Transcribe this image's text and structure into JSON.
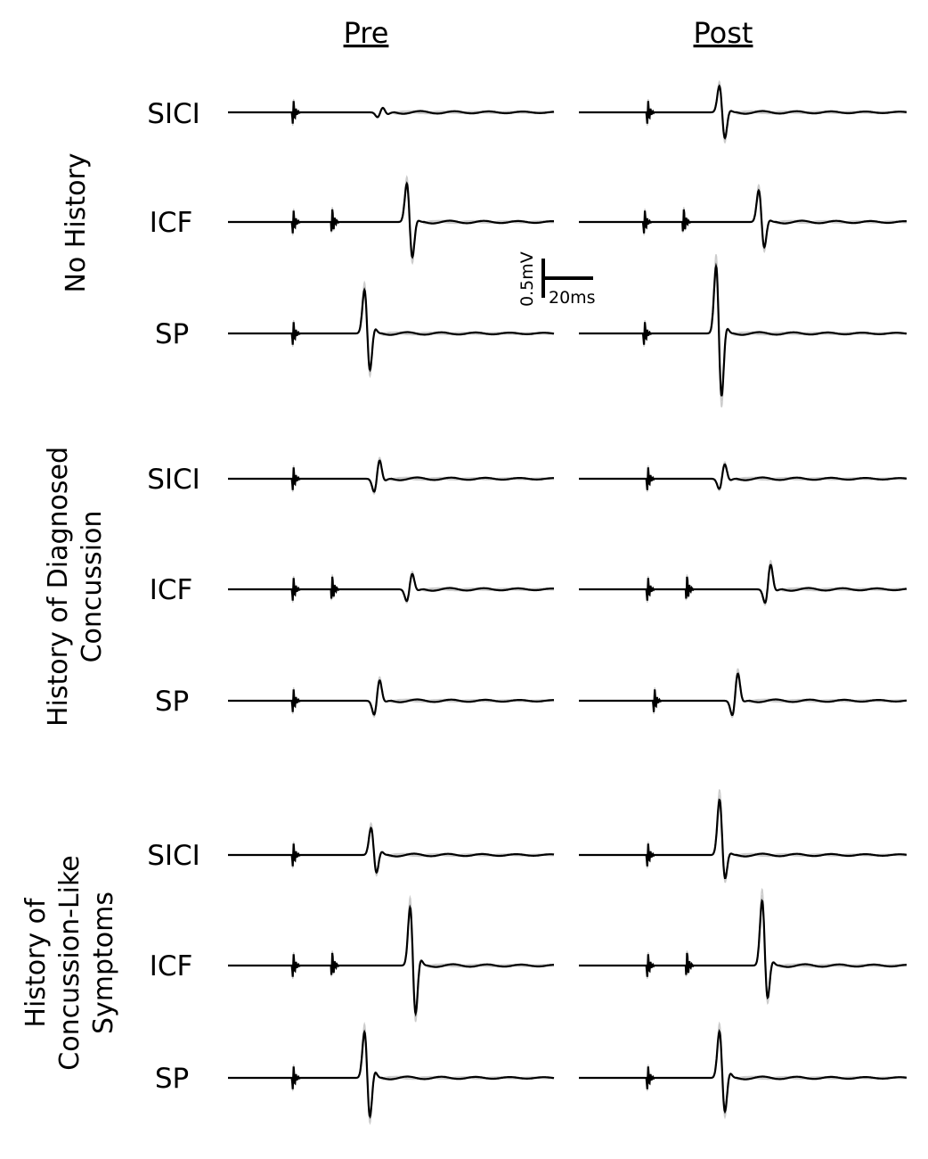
{
  "chart_data": {
    "type": "line",
    "columns": [
      "Pre",
      "Post"
    ],
    "scale_bar": {
      "amplitude_label": "0.5mV",
      "time_label": "20ms"
    },
    "groups": [
      {
        "label_lines": [
          "No History"
        ],
        "traces": [
          {
            "label": "SICI",
            "pre": {
              "pulses": [
                0.2
              ],
              "mep": {
                "t": 0.46,
                "peaks": [
                  -0.1,
                  0.1,
                  -0.04
                ]
              }
            },
            "post": {
              "pulses": [
                0.21
              ],
              "mep": {
                "t": 0.43,
                "peaks": [
                  0.55,
                  -0.55,
                  0.05
                ]
              }
            }
          },
          {
            "label": "ICF",
            "pre": {
              "pulses": [
                0.2,
                0.32
              ],
              "mep": {
                "t": 0.55,
                "peaks": [
                  0.8,
                  -0.75,
                  0.05
                ]
              }
            },
            "post": {
              "pulses": [
                0.2,
                0.32
              ],
              "mep": {
                "t": 0.55,
                "peaks": [
                  0.65,
                  -0.55,
                  0.05
                ]
              }
            }
          },
          {
            "label": "SP",
            "pre": {
              "pulses": [
                0.2
              ],
              "mep": {
                "t": 0.42,
                "peaks": [
                  0.9,
                  -0.8,
                  0.12
                ]
              }
            },
            "post": {
              "pulses": [
                0.2
              ],
              "mep": {
                "t": 0.42,
                "peaks": [
                  1.4,
                  -1.35,
                  0.15
                ]
              }
            }
          }
        ]
      },
      {
        "label_lines": [
          "History of Diagnosed",
          "Concussion"
        ],
        "traces": [
          {
            "label": "SICI",
            "pre": {
              "pulses": [
                0.2
              ],
              "mep": {
                "t": 0.45,
                "peaks": [
                  -0.28,
                  0.38,
                  -0.05
                ]
              }
            },
            "post": {
              "pulses": [
                0.21
              ],
              "mep": {
                "t": 0.43,
                "peaks": [
                  -0.22,
                  0.3,
                  -0.04
                ]
              }
            }
          },
          {
            "label": "ICF",
            "pre": {
              "pulses": [
                0.2,
                0.32
              ],
              "mep": {
                "t": 0.55,
                "peaks": [
                  -0.25,
                  0.32,
                  -0.03
                ]
              }
            },
            "post": {
              "pulses": [
                0.21,
                0.33
              ],
              "mep": {
                "t": 0.57,
                "peaks": [
                  -0.3,
                  0.5,
                  -0.04
                ]
              }
            }
          },
          {
            "label": "SP",
            "pre": {
              "pulses": [
                0.2
              ],
              "mep": {
                "t": 0.45,
                "peaks": [
                  -0.3,
                  0.42,
                  -0.03
                ]
              }
            },
            "post": {
              "pulses": [
                0.23
              ],
              "mep": {
                "t": 0.47,
                "peaks": [
                  -0.32,
                  0.55,
                  -0.03
                ]
              }
            }
          }
        ]
      },
      {
        "label_lines": [
          "History of",
          "Concussion-Like",
          "Symptoms"
        ],
        "traces": [
          {
            "label": "SICI",
            "pre": {
              "pulses": [
                0.2
              ],
              "mep": {
                "t": 0.44,
                "peaks": [
                  0.55,
                  -0.4,
                  0.08
                ]
              }
            },
            "post": {
              "pulses": [
                0.21
              ],
              "mep": {
                "t": 0.43,
                "peaks": [
                  1.1,
                  -0.55,
                  0.05
                ]
              }
            }
          },
          {
            "label": "ICF",
            "pre": {
              "pulses": [
                0.2,
                0.32
              ],
              "mep": {
                "t": 0.56,
                "peaks": [
                  1.2,
                  -1.05,
                  0.15
                ]
              }
            },
            "post": {
              "pulses": [
                0.21,
                0.33
              ],
              "mep": {
                "t": 0.56,
                "peaks": [
                  1.3,
                  -0.75,
                  0.1
                ]
              }
            }
          },
          {
            "label": "SP",
            "pre": {
              "pulses": [
                0.2
              ],
              "mep": {
                "t": 0.42,
                "peaks": [
                  0.95,
                  -0.85,
                  0.15
                ]
              }
            },
            "post": {
              "pulses": [
                0.21
              ],
              "mep": {
                "t": 0.43,
                "peaks": [
                  0.95,
                  -0.75,
                  0.12
                ]
              }
            }
          }
        ]
      }
    ]
  }
}
